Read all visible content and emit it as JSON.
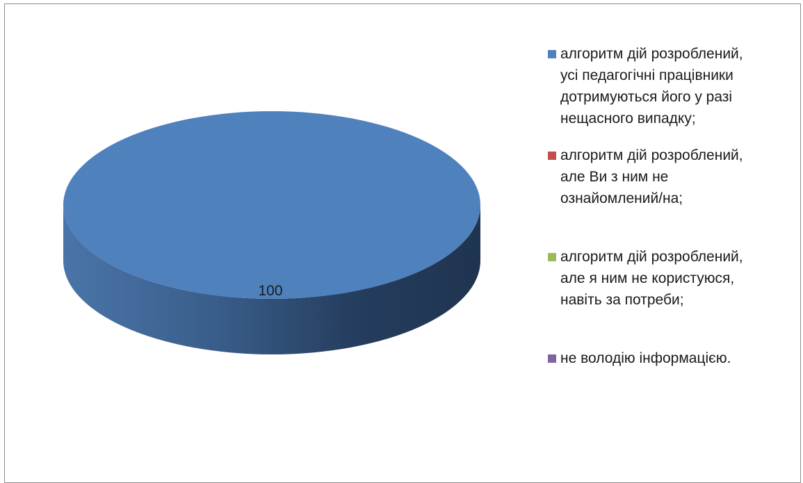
{
  "chart_data": {
    "type": "pie",
    "style": "3d",
    "data_labels": [
      "100"
    ],
    "series": [
      {
        "name": " алгоритм дій розроблений, усі педагогічні працівники дотримуються його у разі нещасного випадку;",
        "value": 100,
        "color": "#4f81bd"
      },
      {
        "name": "алгоритм дій розроблений, але Ви з ним не ознайомлений/на;",
        "value": 0,
        "color": "#c0504d"
      },
      {
        "name": "алгоритм дій розроблений, але я ним не користуюся, навіть за потреби;",
        "value": 0,
        "color": "#9bbb59"
      },
      {
        "name": "не володію інформацією.",
        "value": 0,
        "color": "#8064a2"
      }
    ],
    "legend": {
      "position": "right",
      "entries": [
        " алгоритм дій розроблений,\nусі педагогічні працівники\nдотримуються його у разі\nнещасного випадку;",
        "алгоритм дій розроблений,\nале Ви з ним не\nознайомлений/на;",
        "алгоритм дій розроблений,\nале я ним не користуюся,\nнавіть за потреби;",
        "не володію інформацією."
      ]
    }
  }
}
